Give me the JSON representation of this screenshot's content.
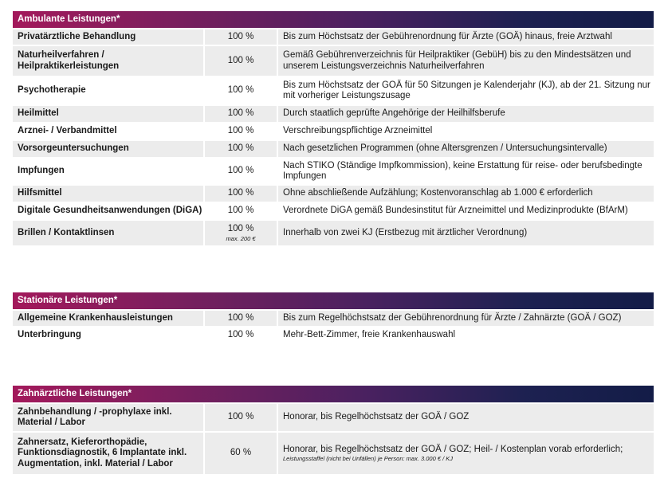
{
  "sections": [
    {
      "title": "Ambulante Leistungen*",
      "rows": [
        {
          "name": "Privatärztliche Behandlung",
          "rate": "100 %",
          "note": "",
          "desc": "Bis zum Höchstsatz der Gebührenordnung für Ärzte (GOÄ) hinaus, freie Arztwahl",
          "desc_small": ""
        },
        {
          "name": "Naturheilverfahren / Heilpraktikerleistungen",
          "rate": "100 %",
          "note": "",
          "desc": "Gemäß Gebührenverzeichnis für Heilpraktiker (GebüH) bis zu den Mindestsätzen und unserem Leistungsverzeichnis Naturheilverfahren",
          "desc_small": ""
        },
        {
          "name": "Psychotherapie",
          "rate": "100 %",
          "note": "",
          "desc": "Bis zum Höchstsatz der GOÄ für 50 Sitzungen je Kalenderjahr (KJ), ab der 21. Sitzung nur mit vorheriger Leistungszusage",
          "desc_small": ""
        },
        {
          "name": "Heilmittel",
          "rate": "100 %",
          "note": "",
          "desc": "Durch staatlich geprüfte Angehörige der Heilhilfsberufe",
          "desc_small": ""
        },
        {
          "name": "Arznei- / Verbandmittel",
          "rate": "100 %",
          "note": "",
          "desc": "Verschreibungspflichtige Arzneimittel",
          "desc_small": ""
        },
        {
          "name": "Vorsorgeuntersuchungen",
          "rate": "100 %",
          "note": "",
          "desc": "Nach gesetzlichen Programmen (ohne Altersgrenzen / Untersuchungsintervalle)",
          "desc_small": ""
        },
        {
          "name": "Impfungen",
          "rate": "100 %",
          "note": "",
          "desc": "Nach STIKO (Ständige Impfkommission), keine Erstattung für reise- oder berufsbedingte Impfungen",
          "desc_small": ""
        },
        {
          "name": "Hilfsmittel",
          "rate": "100 %",
          "note": "",
          "desc": "Ohne abschließende Aufzählung; Kostenvoranschlag ab 1.000 € erforderlich",
          "desc_small": ""
        },
        {
          "name": "Digitale Gesundheitsanwendungen (DiGA)",
          "rate": "100 %",
          "note": "",
          "desc": "Verordnete DiGA gemäß Bundesinstitut für Arzneimittel und Medizinprodukte (BfArM)",
          "desc_small": ""
        },
        {
          "name": "Brillen / Kontaktlinsen",
          "rate": "100 %",
          "note": "max. 200 €",
          "desc": "Innerhalb von zwei KJ (Erstbezug mit ärztlicher Verordnung)",
          "desc_small": ""
        }
      ]
    },
    {
      "title": "Stationäre Leistungen*",
      "rows": [
        {
          "name": "Allgemeine Krankenhausleistungen",
          "rate": "100 %",
          "note": "",
          "desc": "Bis zum Regelhöchstsatz der Gebührenordnung für Ärzte / Zahnärzte (GOÄ / GOZ)",
          "desc_small": ""
        },
        {
          "name": "Unterbringung",
          "rate": "100 %",
          "note": "",
          "desc": "Mehr-Bett-Zimmer, freie Krankenhauswahl",
          "desc_small": ""
        }
      ]
    },
    {
      "title": "Zahnärztliche Leistungen*",
      "rows": [
        {
          "name": "Zahnbehandlung / -prophylaxe inkl. Material / Labor",
          "rate": "100 %",
          "note": "",
          "desc": "Honorar, bis Regelhöchstsatz der GOÄ / GOZ",
          "desc_small": ""
        },
        {
          "name": "Zahnersatz, Kieferorthopädie, Funktionsdiagnostik, 6 Implantate inkl. Augmentation, inkl. Material / Labor",
          "rate": "60 %",
          "note": "",
          "desc": "Honorar, bis Regelhöchstsatz der GOÄ / GOZ; Heil- / Kostenplan vorab erforderlich;",
          "desc_small": "Leistungsstaffel (nicht bei Unfällen) je Person: max. 3.000 € / KJ"
        }
      ]
    }
  ]
}
